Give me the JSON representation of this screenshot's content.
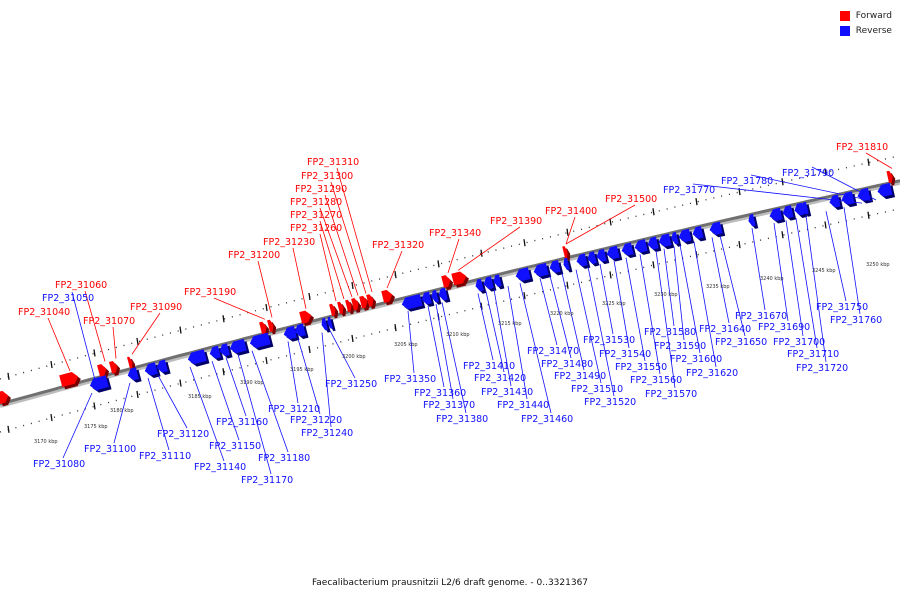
{
  "legend": {
    "forward_label": "Forward",
    "reverse_label": "Reverse",
    "forward_color": "#ff0000",
    "reverse_color": "#1010ff"
  },
  "caption": "Faecalibacterium prausnitzii L2/6 draft genome. - 0..3321367",
  "scale": {
    "inner_ticks": [
      "3170 kbp",
      "3175 kbp",
      "3180 kbp",
      "3185 kbp",
      "3190 kbp",
      "3195 kbp",
      "3200 kbp",
      "3205 kbp",
      "3210 kbp"
    ],
    "outer_ticks": [
      "3215 kbp",
      "3220 kbp",
      "3225 kbp",
      "3230 kbp",
      "3235 kbp",
      "3240 kbp",
      "3245 kbp",
      "3250 kbp"
    ]
  },
  "forward_labels": [
    "FP2_31040",
    "FP2_31060",
    "FP2_31070",
    "FP2_31090",
    "FP2_31190",
    "FP2_31200",
    "FP2_31230",
    "FP2_31260",
    "FP2_31270",
    "FP2_31280",
    "FP2_31290",
    "FP2_31300",
    "FP2_31310",
    "FP2_31320",
    "FP2_31340",
    "FP2_31390",
    "FP2_31400",
    "FP2_31500",
    "FP2_31810"
  ],
  "reverse_labels": [
    "FP2_31050",
    "FP2_31770",
    "FP2_31780",
    "FP2_31790",
    "FP2_31080",
    "FP2_31100",
    "FP2_31110",
    "FP2_31120",
    "FP2_31140",
    "FP2_31150",
    "FP2_31160",
    "FP2_31170",
    "FP2_31180",
    "FP2_31210",
    "FP2_31220",
    "FP2_31240",
    "FP2_31250",
    "FP2_31350",
    "FP2_31360",
    "FP2_31370",
    "FP2_31380",
    "FP2_31410",
    "FP2_31420",
    "FP2_31430",
    "FP2_31440",
    "FP2_31460",
    "FP2_31470",
    "FP2_31480",
    "FP2_31490",
    "FP2_31510",
    "FP2_31520",
    "FP2_31530",
    "FP2_31540",
    "FP2_31550",
    "FP2_31560",
    "FP2_31570",
    "FP2_31580",
    "FP2_31590",
    "FP2_31600",
    "FP2_31620",
    "FP2_31640",
    "FP2_31650",
    "FP2_31670",
    "FP2_31690",
    "FP2_31700",
    "FP2_31710",
    "FP2_31720",
    "FP2_31750",
    "FP2_31760"
  ]
}
